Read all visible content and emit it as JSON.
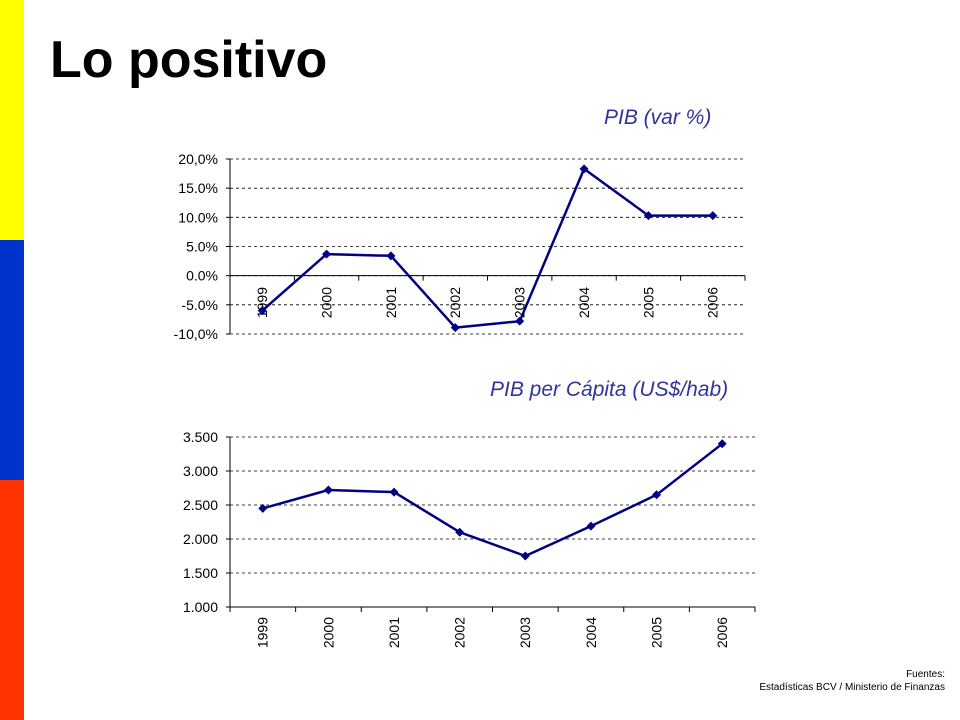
{
  "slide": {
    "title": "Lo positivo",
    "stripe_colors": [
      "#FFFF00",
      "#0033CC",
      "#FF3300"
    ]
  },
  "chart_data": [
    {
      "type": "line",
      "title": "PIB (var %)",
      "title_color": "#333399",
      "categories": [
        "1999",
        "2000",
        "2001",
        "2002",
        "2003",
        "2004",
        "2005",
        "2006"
      ],
      "series": [
        {
          "values": [
            -6.0,
            3.7,
            3.4,
            -8.9,
            -7.8,
            18.3,
            10.3,
            10.3
          ],
          "color": "#000080"
        }
      ],
      "ylim": [
        -10,
        20
      ],
      "y_ticks": [
        20,
        15,
        10,
        5,
        0,
        -5,
        -10
      ],
      "y_tick_labels": [
        "20,0%",
        "15.0%",
        "10.0%",
        "5.0%",
        "0.0%",
        "-5.0%",
        "-10,0%"
      ],
      "x_axis_crosses_at": 0,
      "grid": true
    },
    {
      "type": "line",
      "title": "PIB per Cápita (US$/hab)",
      "title_color": "#333399",
      "categories": [
        "1999",
        "2000",
        "2001",
        "2002",
        "2003",
        "2004",
        "2005",
        "2006"
      ],
      "series": [
        {
          "values": [
            2450,
            2720,
            2690,
            2100,
            1750,
            2190,
            2650,
            3400
          ],
          "color": "#000080"
        }
      ],
      "ylim": [
        1000,
        3500
      ],
      "y_ticks": [
        3500,
        3000,
        2500,
        2000,
        1500,
        1000
      ],
      "y_tick_labels": [
        "3.500",
        "3.000",
        "2.500",
        "2.000",
        "1.500",
        "1.000"
      ],
      "x_axis_crosses_at": 1000,
      "grid": true
    }
  ],
  "footer": {
    "label": "Fuentes:",
    "text": "Estadísticas BCV / Ministerio de Finanzas"
  }
}
